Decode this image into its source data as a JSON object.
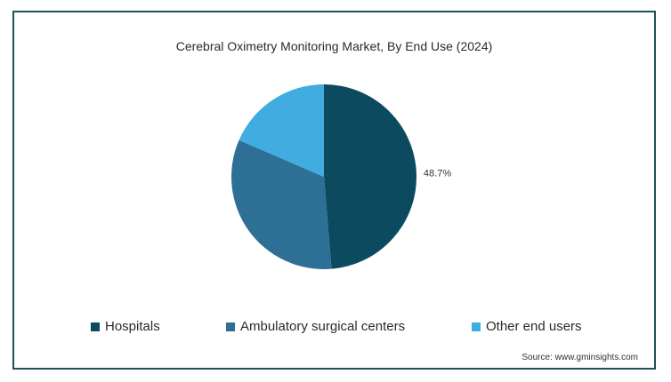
{
  "chart_data": {
    "type": "pie",
    "title": "Cerebral Oximetry Monitoring Market, By End Use (2024)",
    "categories": [
      "Hospitals",
      "Ambulatory surgical centers",
      "Other end users"
    ],
    "values": [
      48.7,
      32.8,
      18.5
    ],
    "colors": [
      "#0c4a60",
      "#2e7095",
      "#41ace0"
    ],
    "data_labels": [
      "48.7%",
      "",
      ""
    ],
    "legend_position": "bottom",
    "source": "Source: www.gminsights.com"
  }
}
